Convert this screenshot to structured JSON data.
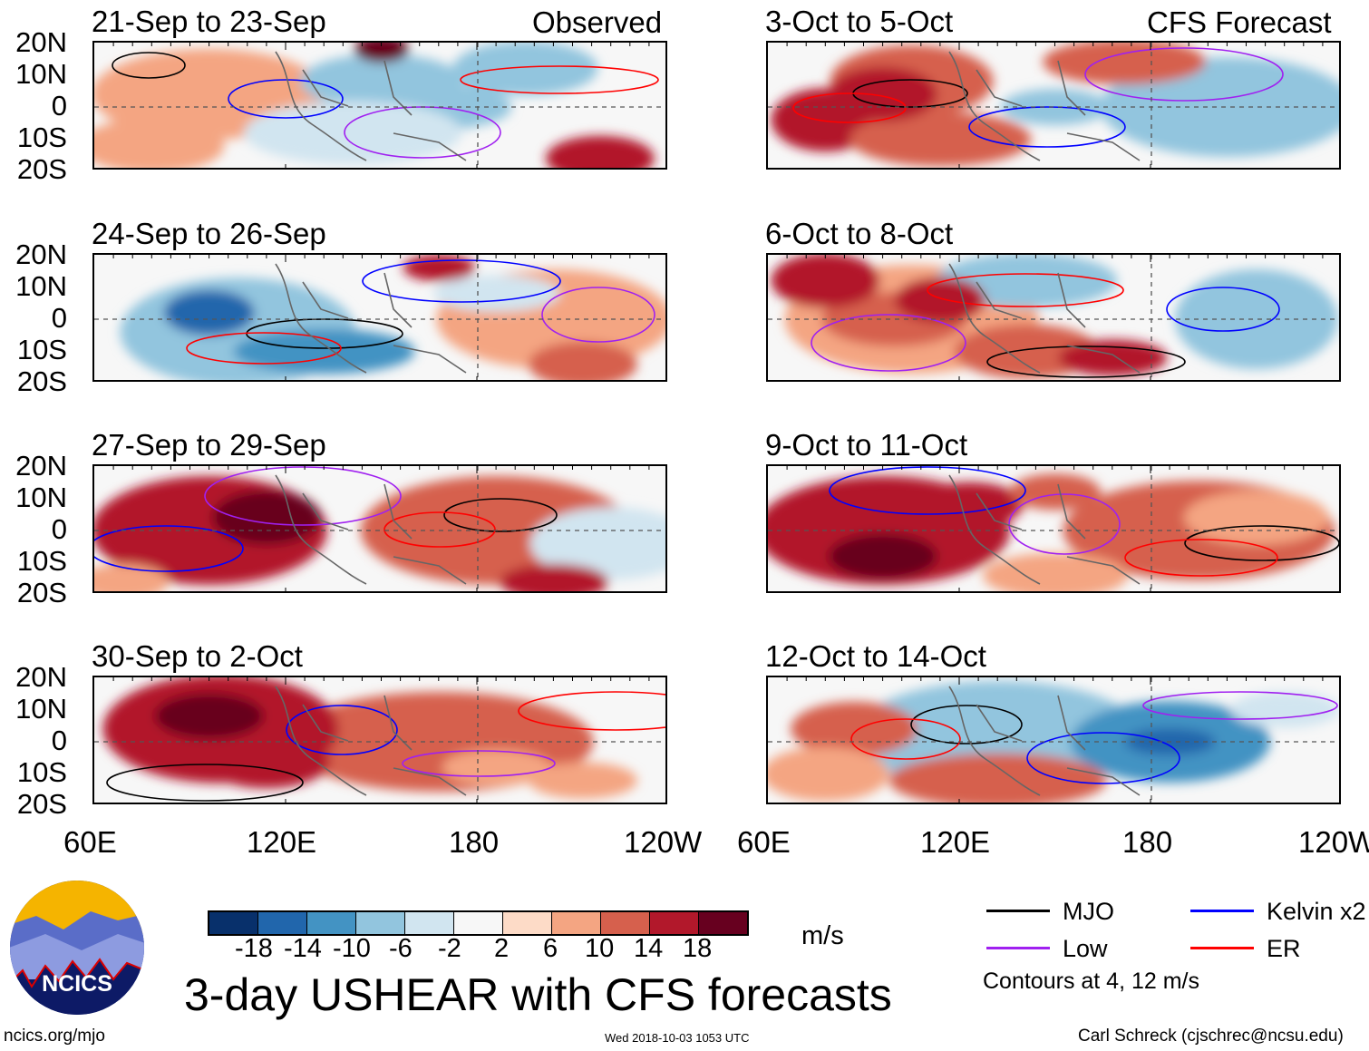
{
  "header": {
    "observed_label": "Observed",
    "forecast_label": "CFS Forecast"
  },
  "observed_panels": [
    {
      "title": "21-Sep to 23-Sep"
    },
    {
      "title": "24-Sep to 26-Sep"
    },
    {
      "title": "27-Sep to 29-Sep"
    },
    {
      "title": "30-Sep to 2-Oct"
    }
  ],
  "forecast_panels": [
    {
      "title": "3-Oct to 5-Oct"
    },
    {
      "title": "6-Oct to 8-Oct"
    },
    {
      "title": "9-Oct to 11-Oct"
    },
    {
      "title": "12-Oct to 14-Oct"
    }
  ],
  "lat_labels": [
    "20N",
    "10N",
    "0",
    "10S",
    "20S"
  ],
  "lon_labels": [
    "60E",
    "120E",
    "180",
    "120W"
  ],
  "colorbar": {
    "colors": [
      "#08306b",
      "#2166ac",
      "#4393c3",
      "#92c5de",
      "#d1e5f0",
      "#f7f7f7",
      "#fddbc7",
      "#f4a582",
      "#d6604d",
      "#b2182b",
      "#67001f"
    ],
    "labels": [
      "-18",
      "-14",
      "-10",
      "-6",
      "-2",
      "2",
      "6",
      "10",
      "14",
      "18"
    ],
    "units": "m/s"
  },
  "legend": {
    "items": [
      {
        "label": "MJO",
        "color": "#000000"
      },
      {
        "label": "Kelvin x2",
        "color": "#0000ff"
      },
      {
        "label": "Low",
        "color": "#a020f0"
      },
      {
        "label": "ER",
        "color": "#ff0000"
      }
    ],
    "contours_note": "Contours at 4, 12 m/s"
  },
  "logo": {
    "text": "NCICS"
  },
  "footer": {
    "title": "3-day USHEAR with CFS forecasts",
    "url": "ncics.org/mjo",
    "timestamp": "Wed 2018-10-03 1053 UTC",
    "author": "Carl Schreck (cjschrec@ncsu.edu)"
  }
}
